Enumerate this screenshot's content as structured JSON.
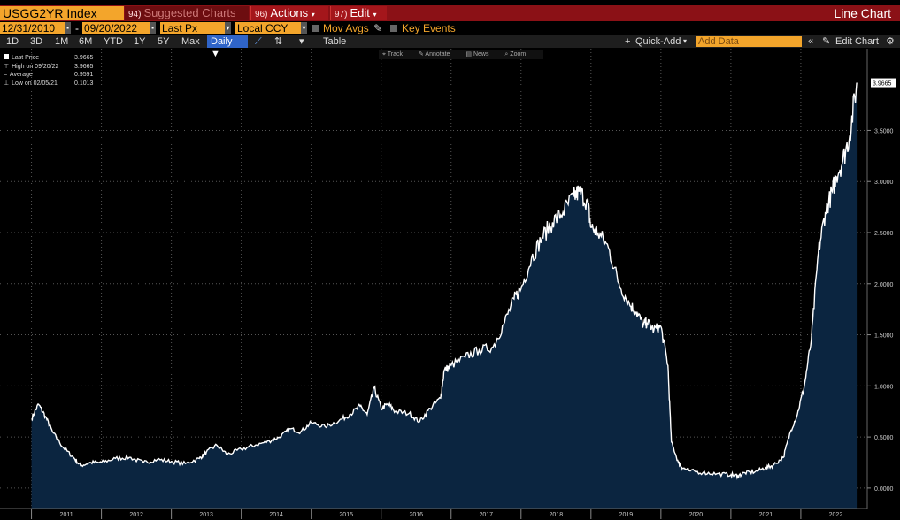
{
  "header": {
    "ticker": "USGG2YR Index",
    "menu": [
      {
        "num": "94)",
        "label": "Suggested Charts"
      },
      {
        "num": "96)",
        "label": "Actions"
      },
      {
        "num": "97)",
        "label": "Edit"
      }
    ],
    "view_title": "Line Chart"
  },
  "controls": {
    "start_date": "12/31/2010",
    "date_sep": "-",
    "end_date": "09/20/2022",
    "field": "Last Px",
    "currency": "Local CCY",
    "mov_avgs": "Mov Avgs",
    "key_events": "Key Events"
  },
  "periods": [
    "1D",
    "3D",
    "1M",
    "6M",
    "YTD",
    "1Y",
    "5Y",
    "Max"
  ],
  "frequency": "Daily",
  "toolbar": {
    "table": "Table",
    "quick_add": "Quick-Add",
    "add_data_placeholder": "Add Data",
    "edit_chart": "Edit Chart"
  },
  "chart_tools": [
    "Track",
    "Annotate",
    "News",
    "Zoom"
  ],
  "legend": [
    {
      "label": "Last Price",
      "value": "3.9665"
    },
    {
      "label": "High on 09/20/22",
      "value": "3.9665"
    },
    {
      "label": "Average",
      "value": "0.9591"
    },
    {
      "label": "Low on 02/05/21",
      "value": "0.1013"
    }
  ],
  "colors": {
    "accent": "#f3a52b",
    "titlebar": "#8b1116",
    "line": "#ffffff",
    "fill": "#0b2540",
    "active": "#2f64c8"
  },
  "chart_data": {
    "type": "area",
    "x_ticks": [
      "2011",
      "2012",
      "2013",
      "2014",
      "2015",
      "2016",
      "2017",
      "2018",
      "2019",
      "2020",
      "2021",
      "2022"
    ],
    "y_ticks": [
      "0.0000",
      "0.5000",
      "1.0000",
      "1.5000",
      "2.0000",
      "2.5000",
      "3.0000",
      "3.5000"
    ],
    "ylim": [
      -0.2,
      4.3
    ],
    "last_value_label": "3.9665",
    "series": [
      {
        "x": [
          2011.0,
          2011.1,
          2011.2,
          2011.3,
          2011.45,
          2011.6,
          2011.7,
          2011.85,
          2012.0,
          2012.2,
          2012.4,
          2012.6,
          2012.8,
          2013.0,
          2013.2,
          2013.4,
          2013.5,
          2013.65,
          2013.8,
          2014.0,
          2014.2,
          2014.4,
          2014.55,
          2014.7,
          2014.85,
          2015.0,
          2015.2,
          2015.4,
          2015.55,
          2015.7,
          2015.8,
          2015.9,
          2016.0,
          2016.1,
          2016.2,
          2016.4,
          2016.55,
          2016.7,
          2016.85,
          2016.9,
          2017.0,
          2017.2,
          2017.4,
          2017.6,
          2017.75,
          2017.9,
          2018.0,
          2018.15,
          2018.3,
          2018.45,
          2018.6,
          2018.75,
          2018.83,
          2018.95,
          2019.0,
          2019.1,
          2019.25,
          2019.4,
          2019.55,
          2019.65,
          2019.75,
          2019.8,
          2019.9,
          2020.0,
          2020.1,
          2020.15,
          2020.25,
          2020.3,
          2020.4,
          2020.6,
          2020.8,
          2021.0,
          2021.1,
          2021.2,
          2021.35,
          2021.5,
          2021.6,
          2021.75,
          2021.85,
          2021.95,
          2022.05,
          2022.15,
          2022.25,
          2022.35,
          2022.45,
          2022.5,
          2022.6,
          2022.7,
          2022.8
        ],
        "y": [
          0.68,
          0.82,
          0.7,
          0.55,
          0.4,
          0.3,
          0.22,
          0.25,
          0.25,
          0.29,
          0.3,
          0.25,
          0.28,
          0.26,
          0.24,
          0.29,
          0.35,
          0.42,
          0.33,
          0.38,
          0.42,
          0.46,
          0.5,
          0.58,
          0.55,
          0.64,
          0.6,
          0.66,
          0.72,
          0.8,
          0.72,
          0.98,
          0.78,
          0.82,
          0.75,
          0.73,
          0.65,
          0.78,
          0.88,
          1.15,
          1.2,
          1.28,
          1.35,
          1.38,
          1.6,
          1.85,
          1.95,
          2.25,
          2.45,
          2.6,
          2.7,
          2.85,
          2.9,
          2.8,
          2.55,
          2.5,
          2.35,
          2.0,
          1.8,
          1.72,
          1.6,
          1.62,
          1.55,
          1.58,
          1.2,
          0.45,
          0.25,
          0.2,
          0.17,
          0.15,
          0.14,
          0.13,
          0.12,
          0.15,
          0.16,
          0.2,
          0.22,
          0.3,
          0.55,
          0.72,
          1.0,
          1.45,
          2.3,
          2.7,
          2.9,
          3.05,
          3.2,
          3.45,
          3.9665
        ]
      }
    ]
  }
}
